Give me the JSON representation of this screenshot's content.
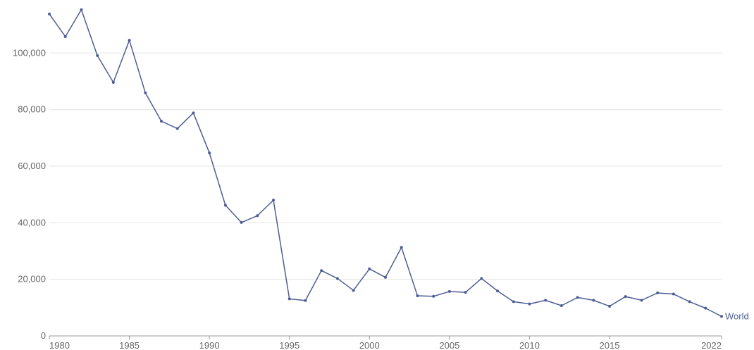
{
  "chart_data": {
    "type": "line",
    "title": "",
    "xlabel": "",
    "ylabel": "",
    "xlim": [
      1980,
      2022
    ],
    "ylim": [
      0,
      115000
    ],
    "grid": "horizontal",
    "legend": "inline at end of line",
    "x_ticks": [
      1980,
      1985,
      1990,
      1995,
      2000,
      2005,
      2010,
      2015,
      2022
    ],
    "x_tick_labels": [
      "1980",
      "1985",
      "1990",
      "1995",
      "2000",
      "2005",
      "2010",
      "2015",
      "2022"
    ],
    "y_ticks": [
      0,
      20000,
      40000,
      60000,
      80000,
      100000
    ],
    "y_tick_labels": [
      "0",
      "20,000",
      "40,000",
      "60,000",
      "80,000",
      "100,000"
    ],
    "series": [
      {
        "name": "World",
        "color": "#4e5d96",
        "x": [
          1980,
          1981,
          1982,
          1983,
          1984,
          1985,
          1986,
          1987,
          1988,
          1989,
          1990,
          1991,
          1992,
          1993,
          1994,
          1995,
          1996,
          1997,
          1998,
          1999,
          2000,
          2001,
          2002,
          2003,
          2004,
          2005,
          2006,
          2007,
          2008,
          2009,
          2010,
          2011,
          2012,
          2013,
          2014,
          2015,
          2016,
          2017,
          2018,
          2019,
          2020,
          2021,
          2022
        ],
        "values": [
          113800,
          105800,
          115300,
          99100,
          89600,
          104500,
          85900,
          75900,
          73300,
          78800,
          64700,
          46200,
          40100,
          42500,
          48000,
          13100,
          12500,
          23100,
          20300,
          16100,
          23700,
          20700,
          31300,
          14200,
          14000,
          15700,
          15400,
          20300,
          15900,
          12100,
          11300,
          12600,
          10700,
          13600,
          12600,
          10500,
          13900,
          12600,
          15200,
          14800,
          12100,
          9800,
          6900
        ]
      }
    ]
  }
}
